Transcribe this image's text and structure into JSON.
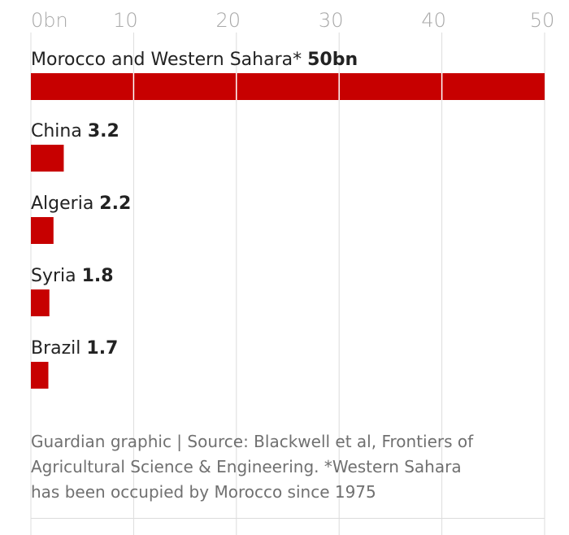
{
  "chart_data": {
    "type": "bar",
    "orientation": "horizontal",
    "categories": [
      "Morocco and Western Sahara*",
      "China",
      "Algeria",
      "Syria",
      "Brazil"
    ],
    "values": [
      50,
      3.2,
      2.2,
      1.8,
      1.7
    ],
    "value_labels": [
      "50bn",
      "3.2",
      "2.2",
      "1.8",
      "1.7"
    ],
    "x_ticks": [
      0,
      10,
      20,
      30,
      40,
      50
    ],
    "x_tick_labels": [
      "0bn",
      "10",
      "20",
      "30",
      "40",
      "50"
    ],
    "xlim": [
      0,
      50
    ],
    "grid": true,
    "colors": {
      "bar": "#c70000"
    }
  },
  "footer": {
    "lines": [
      "Guardian graphic | Source: Blackwell et al, Frontiers of",
      "Agricultural Science & Engineering. *Western Sahara",
      "has been occupied by Morocco since 1975"
    ]
  }
}
